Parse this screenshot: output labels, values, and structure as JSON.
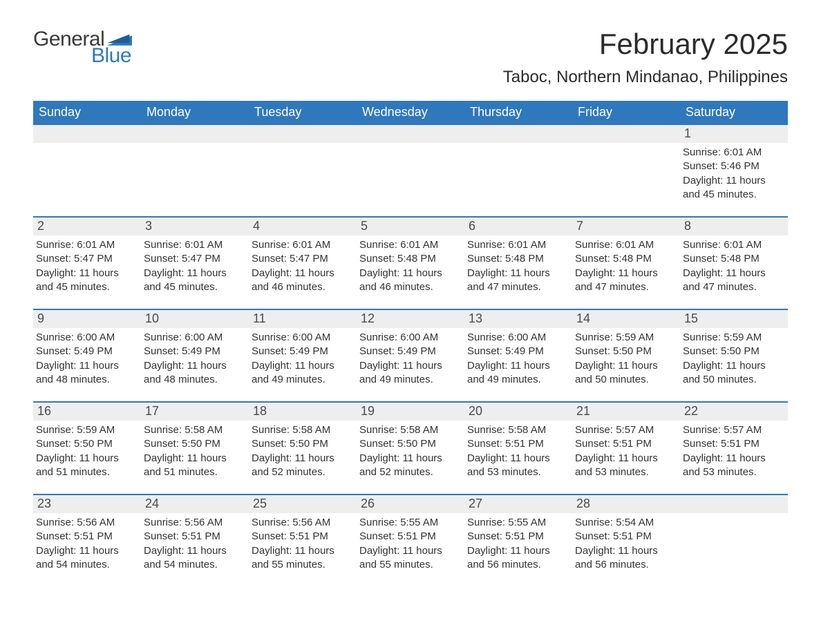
{
  "brand": {
    "word1": "General",
    "word2": "Blue",
    "text_color": "#3a3a3a",
    "accent_color": "#2f78bd"
  },
  "title": "February 2025",
  "location": "Taboc, Northern Mindanao, Philippines",
  "colors": {
    "header_bg": "#2f78bd",
    "header_text": "#ffffff",
    "daynum_bg": "#eeeeee",
    "rule": "#2f78bd",
    "body_text": "#333333"
  },
  "day_names": [
    "Sunday",
    "Monday",
    "Tuesday",
    "Wednesday",
    "Thursday",
    "Friday",
    "Saturday"
  ],
  "weeks": [
    [
      {
        "empty": true
      },
      {
        "empty": true
      },
      {
        "empty": true
      },
      {
        "empty": true
      },
      {
        "empty": true
      },
      {
        "empty": true
      },
      {
        "n": "1",
        "sunrise": "Sunrise: 6:01 AM",
        "sunset": "Sunset: 5:46 PM",
        "d1": "Daylight: 11 hours",
        "d2": "and 45 minutes."
      }
    ],
    [
      {
        "n": "2",
        "sunrise": "Sunrise: 6:01 AM",
        "sunset": "Sunset: 5:47 PM",
        "d1": "Daylight: 11 hours",
        "d2": "and 45 minutes."
      },
      {
        "n": "3",
        "sunrise": "Sunrise: 6:01 AM",
        "sunset": "Sunset: 5:47 PM",
        "d1": "Daylight: 11 hours",
        "d2": "and 45 minutes."
      },
      {
        "n": "4",
        "sunrise": "Sunrise: 6:01 AM",
        "sunset": "Sunset: 5:47 PM",
        "d1": "Daylight: 11 hours",
        "d2": "and 46 minutes."
      },
      {
        "n": "5",
        "sunrise": "Sunrise: 6:01 AM",
        "sunset": "Sunset: 5:48 PM",
        "d1": "Daylight: 11 hours",
        "d2": "and 46 minutes."
      },
      {
        "n": "6",
        "sunrise": "Sunrise: 6:01 AM",
        "sunset": "Sunset: 5:48 PM",
        "d1": "Daylight: 11 hours",
        "d2": "and 47 minutes."
      },
      {
        "n": "7",
        "sunrise": "Sunrise: 6:01 AM",
        "sunset": "Sunset: 5:48 PM",
        "d1": "Daylight: 11 hours",
        "d2": "and 47 minutes."
      },
      {
        "n": "8",
        "sunrise": "Sunrise: 6:01 AM",
        "sunset": "Sunset: 5:48 PM",
        "d1": "Daylight: 11 hours",
        "d2": "and 47 minutes."
      }
    ],
    [
      {
        "n": "9",
        "sunrise": "Sunrise: 6:00 AM",
        "sunset": "Sunset: 5:49 PM",
        "d1": "Daylight: 11 hours",
        "d2": "and 48 minutes."
      },
      {
        "n": "10",
        "sunrise": "Sunrise: 6:00 AM",
        "sunset": "Sunset: 5:49 PM",
        "d1": "Daylight: 11 hours",
        "d2": "and 48 minutes."
      },
      {
        "n": "11",
        "sunrise": "Sunrise: 6:00 AM",
        "sunset": "Sunset: 5:49 PM",
        "d1": "Daylight: 11 hours",
        "d2": "and 49 minutes."
      },
      {
        "n": "12",
        "sunrise": "Sunrise: 6:00 AM",
        "sunset": "Sunset: 5:49 PM",
        "d1": "Daylight: 11 hours",
        "d2": "and 49 minutes."
      },
      {
        "n": "13",
        "sunrise": "Sunrise: 6:00 AM",
        "sunset": "Sunset: 5:49 PM",
        "d1": "Daylight: 11 hours",
        "d2": "and 49 minutes."
      },
      {
        "n": "14",
        "sunrise": "Sunrise: 5:59 AM",
        "sunset": "Sunset: 5:50 PM",
        "d1": "Daylight: 11 hours",
        "d2": "and 50 minutes."
      },
      {
        "n": "15",
        "sunrise": "Sunrise: 5:59 AM",
        "sunset": "Sunset: 5:50 PM",
        "d1": "Daylight: 11 hours",
        "d2": "and 50 minutes."
      }
    ],
    [
      {
        "n": "16",
        "sunrise": "Sunrise: 5:59 AM",
        "sunset": "Sunset: 5:50 PM",
        "d1": "Daylight: 11 hours",
        "d2": "and 51 minutes."
      },
      {
        "n": "17",
        "sunrise": "Sunrise: 5:58 AM",
        "sunset": "Sunset: 5:50 PM",
        "d1": "Daylight: 11 hours",
        "d2": "and 51 minutes."
      },
      {
        "n": "18",
        "sunrise": "Sunrise: 5:58 AM",
        "sunset": "Sunset: 5:50 PM",
        "d1": "Daylight: 11 hours",
        "d2": "and 52 minutes."
      },
      {
        "n": "19",
        "sunrise": "Sunrise: 5:58 AM",
        "sunset": "Sunset: 5:50 PM",
        "d1": "Daylight: 11 hours",
        "d2": "and 52 minutes."
      },
      {
        "n": "20",
        "sunrise": "Sunrise: 5:58 AM",
        "sunset": "Sunset: 5:51 PM",
        "d1": "Daylight: 11 hours",
        "d2": "and 53 minutes."
      },
      {
        "n": "21",
        "sunrise": "Sunrise: 5:57 AM",
        "sunset": "Sunset: 5:51 PM",
        "d1": "Daylight: 11 hours",
        "d2": "and 53 minutes."
      },
      {
        "n": "22",
        "sunrise": "Sunrise: 5:57 AM",
        "sunset": "Sunset: 5:51 PM",
        "d1": "Daylight: 11 hours",
        "d2": "and 53 minutes."
      }
    ],
    [
      {
        "n": "23",
        "sunrise": "Sunrise: 5:56 AM",
        "sunset": "Sunset: 5:51 PM",
        "d1": "Daylight: 11 hours",
        "d2": "and 54 minutes."
      },
      {
        "n": "24",
        "sunrise": "Sunrise: 5:56 AM",
        "sunset": "Sunset: 5:51 PM",
        "d1": "Daylight: 11 hours",
        "d2": "and 54 minutes."
      },
      {
        "n": "25",
        "sunrise": "Sunrise: 5:56 AM",
        "sunset": "Sunset: 5:51 PM",
        "d1": "Daylight: 11 hours",
        "d2": "and 55 minutes."
      },
      {
        "n": "26",
        "sunrise": "Sunrise: 5:55 AM",
        "sunset": "Sunset: 5:51 PM",
        "d1": "Daylight: 11 hours",
        "d2": "and 55 minutes."
      },
      {
        "n": "27",
        "sunrise": "Sunrise: 5:55 AM",
        "sunset": "Sunset: 5:51 PM",
        "d1": "Daylight: 11 hours",
        "d2": "and 56 minutes."
      },
      {
        "n": "28",
        "sunrise": "Sunrise: 5:54 AM",
        "sunset": "Sunset: 5:51 PM",
        "d1": "Daylight: 11 hours",
        "d2": "and 56 minutes."
      },
      {
        "empty": true
      }
    ]
  ]
}
